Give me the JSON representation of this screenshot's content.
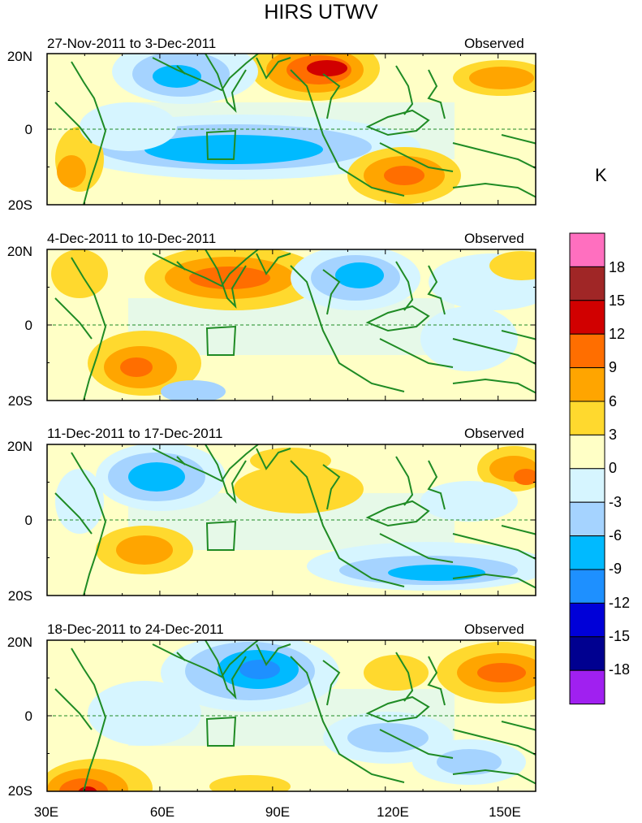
{
  "chart_data": {
    "type": "heatmap",
    "title": "HIRS UTWV",
    "units": "K",
    "lon_ticks": [
      "30E",
      "60E",
      "90E",
      "120E",
      "150E"
    ],
    "lat_ticks": [
      "20N",
      "0",
      "20S"
    ],
    "lon_range": [
      30,
      160
    ],
    "lat_range": [
      -20,
      20
    ],
    "colorbar": {
      "labels": [
        "18",
        "15",
        "12",
        "9",
        "6",
        "3",
        "0",
        "-3",
        "-6",
        "-9",
        "-12",
        "-15",
        "-18"
      ],
      "colors": [
        "#ff6fbf",
        "#a02626",
        "#d10000",
        "#ff6e00",
        "#ffa500",
        "#ffd92e",
        "#ffffc6",
        "#d6f5ff",
        "#a5d3ff",
        "#00baff",
        "#1e90ff",
        "#0000d8",
        "#000090",
        "#a020f0"
      ]
    },
    "panels": [
      {
        "period": "27-Nov-2011 to 3-Dec-2011",
        "label": "Observed"
      },
      {
        "period": "4-Dec-2011 to 10-Dec-2011",
        "label": "Observed"
      },
      {
        "period": "11-Dec-2011 to 17-Dec-2011",
        "label": "Observed"
      },
      {
        "period": "18-Dec-2011 to 24-Dec-2011",
        "label": "Observed"
      }
    ]
  }
}
